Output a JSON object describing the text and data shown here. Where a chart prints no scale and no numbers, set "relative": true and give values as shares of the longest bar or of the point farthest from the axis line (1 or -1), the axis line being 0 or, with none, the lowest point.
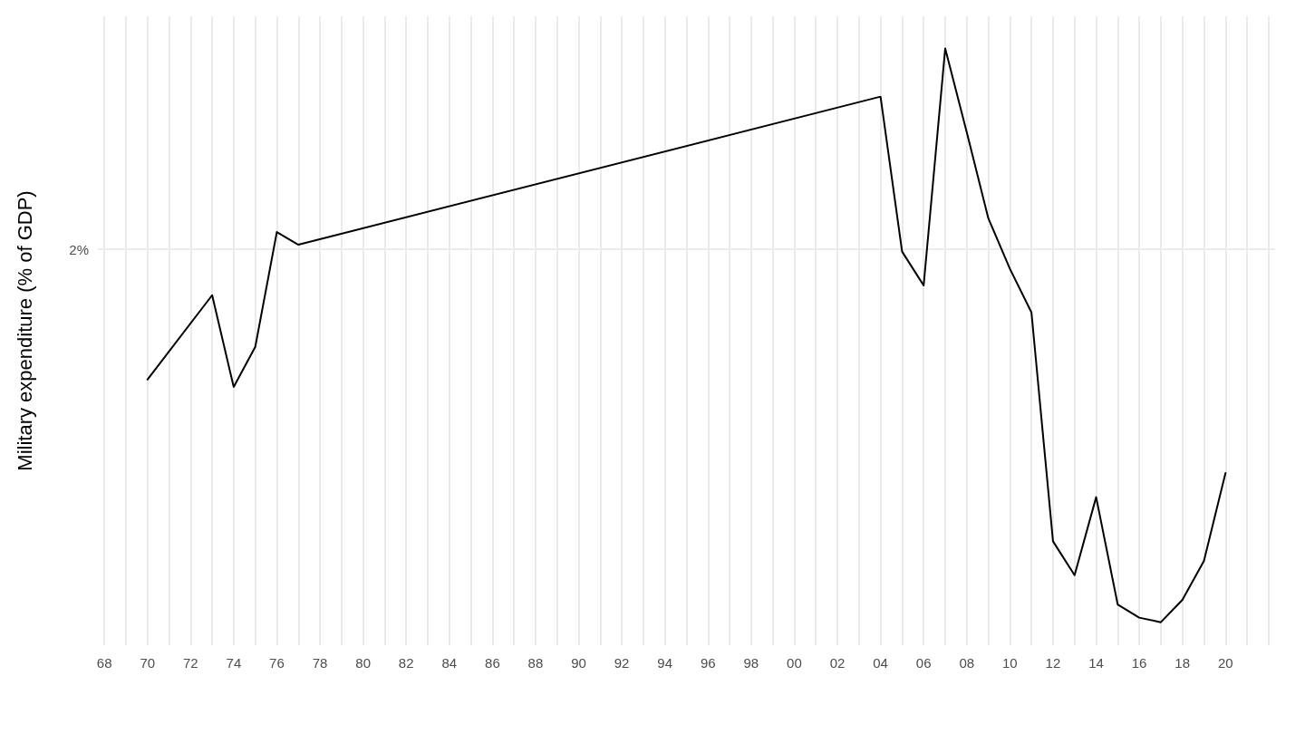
{
  "chart_data": {
    "type": "line",
    "ylabel": "Military expenditure (% of GDP)",
    "relative": true,
    "grid": "x",
    "marker": "none",
    "line_style": "solid",
    "x": [
      1970,
      1973,
      1974,
      1975,
      1976,
      1977,
      2004,
      2005,
      2006,
      2007,
      2008,
      2009,
      2010,
      2011,
      2012,
      2013,
      2014,
      2015,
      2016,
      2017,
      2018,
      2019,
      2020
    ],
    "series": [
      {
        "color": "#000000",
        "values": [
          0.423,
          0.57,
          0.41,
          0.48,
          0.68,
          0.658,
          0.916,
          0.646,
          0.587,
          1,
          0.854,
          0.704,
          0.616,
          0.54,
          0.141,
          0.082,
          0.218,
          0.031,
          0.008,
          0,
          0.039,
          0.107,
          0.26
        ]
      }
    ],
    "xlim": [
      1967.7,
      2022.3
    ],
    "xticks": [
      {
        "value": 1968,
        "label": "68"
      },
      {
        "value": 1969,
        "label": null
      },
      {
        "value": 1970,
        "label": "70"
      },
      {
        "value": 1971,
        "label": null
      },
      {
        "value": 1972,
        "label": "72"
      },
      {
        "value": 1973,
        "label": null
      },
      {
        "value": 1974,
        "label": "74"
      },
      {
        "value": 1975,
        "label": null
      },
      {
        "value": 1976,
        "label": "76"
      },
      {
        "value": 1977,
        "label": null
      },
      {
        "value": 1978,
        "label": "78"
      },
      {
        "value": 1979,
        "label": null
      },
      {
        "value": 1980,
        "label": "80"
      },
      {
        "value": 1981,
        "label": null
      },
      {
        "value": 1982,
        "label": "82"
      },
      {
        "value": 1983,
        "label": null
      },
      {
        "value": 1984,
        "label": "84"
      },
      {
        "value": 1985,
        "label": null
      },
      {
        "value": 1986,
        "label": "86"
      },
      {
        "value": 1987,
        "label": null
      },
      {
        "value": 1988,
        "label": "88"
      },
      {
        "value": 1989,
        "label": null
      },
      {
        "value": 1990,
        "label": "90"
      },
      {
        "value": 1991,
        "label": null
      },
      {
        "value": 1992,
        "label": "92"
      },
      {
        "value": 1993,
        "label": null
      },
      {
        "value": 1994,
        "label": "94"
      },
      {
        "value": 1995,
        "label": null
      },
      {
        "value": 1996,
        "label": "96"
      },
      {
        "value": 1997,
        "label": null
      },
      {
        "value": 1998,
        "label": "98"
      },
      {
        "value": 1999,
        "label": null
      },
      {
        "value": 2000,
        "label": "00"
      },
      {
        "value": 2001,
        "label": null
      },
      {
        "value": 2002,
        "label": "02"
      },
      {
        "value": 2003,
        "label": null
      },
      {
        "value": 2004,
        "label": "04"
      },
      {
        "value": 2005,
        "label": null
      },
      {
        "value": 2006,
        "label": "06"
      },
      {
        "value": 2007,
        "label": null
      },
      {
        "value": 2008,
        "label": "08"
      },
      {
        "value": 2009,
        "label": null
      },
      {
        "value": 2010,
        "label": "10"
      },
      {
        "value": 2011,
        "label": null
      },
      {
        "value": 2012,
        "label": "12"
      },
      {
        "value": 2013,
        "label": null
      },
      {
        "value": 2014,
        "label": "14"
      },
      {
        "value": 2015,
        "label": null
      },
      {
        "value": 2016,
        "label": "16"
      },
      {
        "value": 2017,
        "label": null
      },
      {
        "value": 2018,
        "label": "18"
      },
      {
        "value": 2019,
        "label": null
      },
      {
        "value": 2020,
        "label": "20"
      },
      {
        "value": 2021,
        "label": null
      },
      {
        "value": 2022,
        "label": null
      }
    ],
    "ref_lines": [
      {
        "axis": "y",
        "value": 0.652,
        "color": "#ebebeb"
      }
    ],
    "annotations": [
      "2%"
    ]
  }
}
